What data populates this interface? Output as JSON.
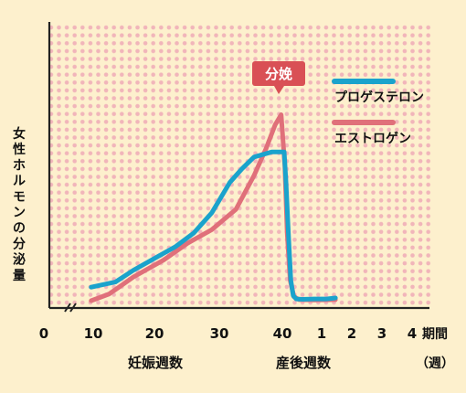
{
  "chart_data": {
    "type": "line",
    "ylabel": "女性ホルモンの分泌量",
    "xlabel_pregnancy": "妊娠週数",
    "xlabel_postpartum": "産後週数",
    "tick_labels": [
      "0",
      "10",
      "20",
      "30",
      "40",
      "1",
      "2",
      "3",
      "4"
    ],
    "unit_label_top": "期間",
    "unit_label_bottom": "（週）",
    "annotation": "分娩",
    "annotation_x_week": 40,
    "grid": "dotted",
    "legend_position": "top-right",
    "series": [
      {
        "name": "プロゲステロン",
        "color": "#1aa3cc",
        "points": [
          [
            8,
            4
          ],
          [
            12,
            5.5
          ],
          [
            15,
            9
          ],
          [
            18,
            12
          ],
          [
            22,
            16
          ],
          [
            25,
            20
          ],
          [
            28,
            26
          ],
          [
            31,
            35
          ],
          [
            33,
            39
          ],
          [
            35,
            42.5
          ],
          [
            38,
            44
          ],
          [
            40,
            44
          ],
          [
            40.3,
            35
          ],
          [
            40.7,
            20
          ],
          [
            41.1,
            6
          ],
          [
            41.5,
            1.5
          ],
          [
            42,
            0.5
          ],
          [
            43,
            0.4
          ],
          [
            45,
            0.5
          ],
          [
            47,
            0.5
          ],
          [
            48.5,
            0.8
          ]
        ]
      },
      {
        "name": "エストロゲン",
        "color": "#e0707a",
        "points": [
          [
            8,
            0
          ],
          [
            11,
            2
          ],
          [
            15,
            7
          ],
          [
            20,
            12
          ],
          [
            24,
            17
          ],
          [
            28,
            21
          ],
          [
            32,
            27
          ],
          [
            35,
            37
          ],
          [
            37,
            45
          ],
          [
            38.5,
            52
          ],
          [
            39.5,
            55
          ],
          [
            40.1,
            40
          ],
          [
            40.5,
            20
          ],
          [
            41,
            6
          ],
          [
            41.6,
            1.2
          ],
          [
            42.5,
            0.3
          ],
          [
            45,
            0.2
          ],
          [
            48.5,
            0.3
          ]
        ]
      }
    ]
  }
}
